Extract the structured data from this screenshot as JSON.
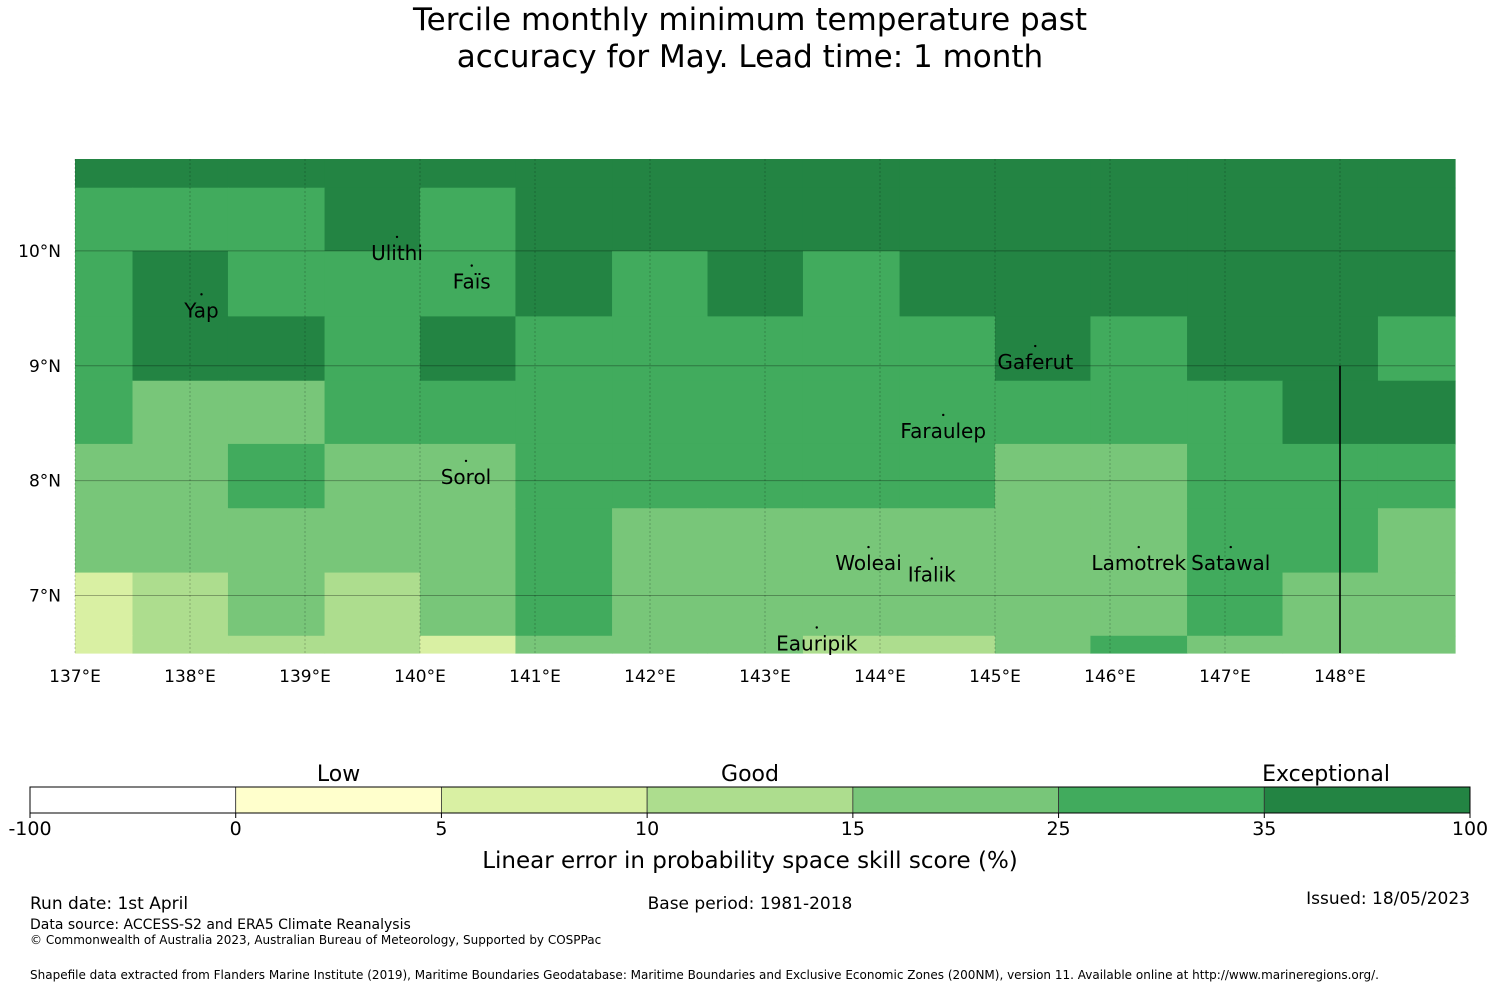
{
  "title": {
    "line1": "Tercile monthly minimum temperature past",
    "line2": "accuracy for May. Lead time: 1 month"
  },
  "map": {
    "lon_range": [
      137,
      149
    ],
    "lat_range": [
      6.5,
      10.8
    ],
    "x_ticks": [
      {
        "value": 137,
        "label": "137°E"
      },
      {
        "value": 138,
        "label": "138°E"
      },
      {
        "value": 139,
        "label": "139°E"
      },
      {
        "value": 140,
        "label": "140°E"
      },
      {
        "value": 141,
        "label": "141°E"
      },
      {
        "value": 142,
        "label": "142°E"
      },
      {
        "value": 143,
        "label": "143°E"
      },
      {
        "value": 144,
        "label": "144°E"
      },
      {
        "value": 145,
        "label": "145°E"
      },
      {
        "value": 146,
        "label": "146°E"
      },
      {
        "value": 147,
        "label": "147°E"
      },
      {
        "value": 148,
        "label": "148°E"
      }
    ],
    "y_ticks": [
      {
        "value": 10,
        "label": "10°N"
      },
      {
        "value": 9,
        "label": "9°N"
      },
      {
        "value": 8,
        "label": "8°N"
      },
      {
        "value": 7,
        "label": "7°N"
      }
    ],
    "grid_lon_edges": [
      137,
      137.5,
      138.33,
      139.17,
      140,
      140.83,
      141.67,
      142.5,
      143.33,
      144.17,
      145,
      145.83,
      146.67,
      147.5,
      148.33,
      149
    ],
    "grid_lat_edges": [
      10.8,
      10.55,
      10,
      9.43,
      8.87,
      8.32,
      7.76,
      7.2,
      6.65,
      6.5
    ],
    "skill_classes": [
      [
        6,
        6,
        6,
        6,
        6,
        6,
        6,
        6,
        6,
        6,
        6,
        6,
        6,
        6,
        6
      ],
      [
        5,
        5,
        5,
        6,
        5,
        6,
        6,
        6,
        6,
        6,
        6,
        6,
        6,
        6,
        6
      ],
      [
        5,
        6,
        5,
        5,
        5,
        6,
        5,
        6,
        5,
        6,
        6,
        6,
        6,
        6,
        6
      ],
      [
        5,
        6,
        6,
        5,
        6,
        5,
        5,
        5,
        5,
        5,
        6,
        5,
        6,
        6,
        5
      ],
      [
        5,
        4,
        4,
        5,
        5,
        5,
        5,
        5,
        5,
        5,
        5,
        5,
        5,
        6,
        6
      ],
      [
        4,
        4,
        5,
        4,
        4,
        5,
        5,
        5,
        5,
        5,
        4,
        4,
        5,
        5,
        5
      ],
      [
        4,
        4,
        4,
        4,
        4,
        5,
        4,
        4,
        4,
        4,
        4,
        4,
        5,
        5,
        4
      ],
      [
        2,
        3,
        4,
        3,
        4,
        5,
        4,
        4,
        4,
        4,
        4,
        4,
        5,
        4,
        4
      ],
      [
        2,
        3,
        3,
        3,
        2,
        4,
        4,
        4,
        3,
        3,
        4,
        5,
        4,
        4,
        4
      ]
    ],
    "boundary_line": {
      "lon": 148,
      "lat_top": 9.0,
      "lat_bottom": 6.5
    },
    "islands": [
      {
        "name": "Ulithi",
        "lon": 139.8,
        "lat": 10.0
      },
      {
        "name": "Faïs",
        "lon": 140.45,
        "lat": 9.75
      },
      {
        "name": "Yap",
        "lon": 138.1,
        "lat": 9.5
      },
      {
        "name": "Gaferut",
        "lon": 145.35,
        "lat": 9.05
      },
      {
        "name": "Faraulep",
        "lon": 144.55,
        "lat": 8.45
      },
      {
        "name": "Sorol",
        "lon": 140.4,
        "lat": 8.05
      },
      {
        "name": "Woleai",
        "lon": 143.9,
        "lat": 7.3
      },
      {
        "name": "Ifalik",
        "lon": 144.45,
        "lat": 7.2
      },
      {
        "name": "Lamotrek",
        "lon": 146.25,
        "lat": 7.3
      },
      {
        "name": "Satawal",
        "lon": 147.05,
        "lat": 7.3
      },
      {
        "name": "Eauripik",
        "lon": 143.45,
        "lat": 6.6
      }
    ]
  },
  "legend": {
    "colors": [
      "#ffffff",
      "#ffffcc",
      "#d9f0a3",
      "#addd8e",
      "#78c679",
      "#41ab5d",
      "#238443"
    ],
    "boundaries": [
      "-100",
      "0",
      "5",
      "10",
      "15",
      "25",
      "35",
      "100"
    ],
    "categories": [
      {
        "label": "Low",
        "position": 1.5
      },
      {
        "label": "Good",
        "position": 3.5
      },
      {
        "label": "Exceptional",
        "position": 6.3
      }
    ],
    "axis_label": "Linear error in probability space skill score (%)"
  },
  "footer": {
    "run_date": "Run date: 1st April",
    "base_period": "Base period: 1981-2018",
    "issued": "Issued: 18/05/2023",
    "data_source": "Data source: ACCESS-S2 and ERA5 Climate Reanalysis",
    "copyright": "© Commonwealth of Australia 2023, Australian Bureau of Meteorology, Supported by COSPPac",
    "shapefile": "Shapefile data extracted from Flanders Marine Institute (2019), Maritime Boundaries Geodatabase: Maritime Boundaries and Exclusive Economic Zones (200NM), version 11. Available online at http://www.marineregions.org/."
  }
}
